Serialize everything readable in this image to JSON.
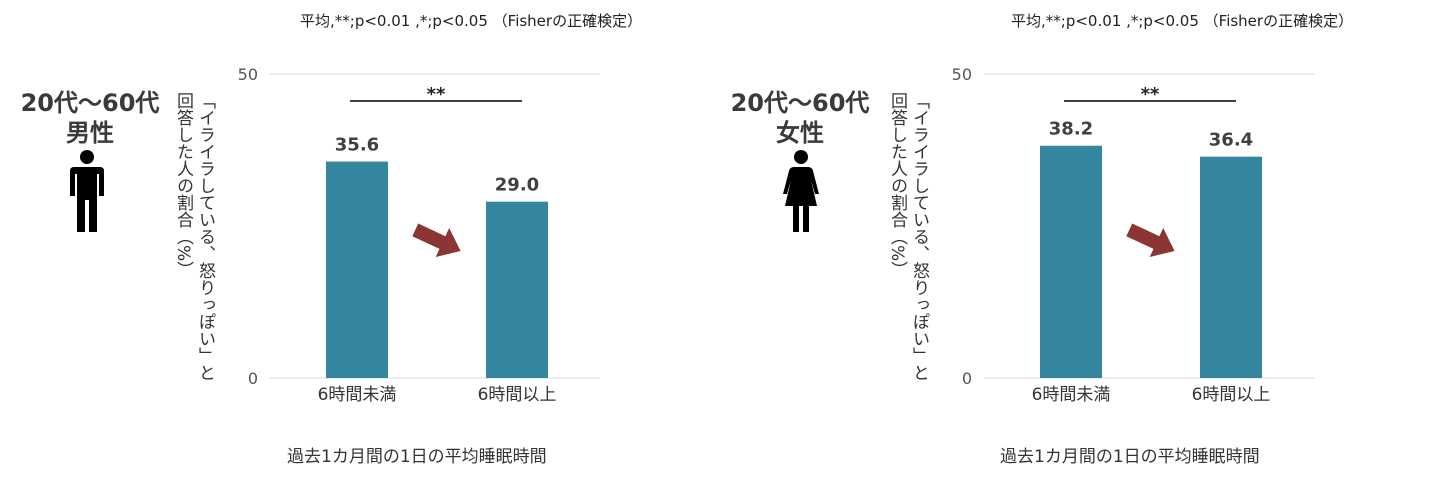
{
  "panels": [
    {
      "note": "平均,**;p<0.01 ,*;p<0.05 （Fisherの正確検定）",
      "group_line1": "20代～60代",
      "group_line2": "男性",
      "person_icon": "male-person-icon",
      "ylabel_line1": "「イライラしている、怒りっぽい」と",
      "ylabel_line2": "回答した人の割合（%）",
      "xlabel": "過去1カ月間の1日の平均睡眠時間",
      "significance": "**",
      "arrow_icon": "down-right-arrow-icon"
    },
    {
      "note": "平均,**;p<0.01 ,*;p<0.05 （Fisherの正確検定）",
      "group_line1": "20代～60代",
      "group_line2": "女性",
      "person_icon": "female-person-icon",
      "ylabel_line1": "「イライラしている、怒りっぽい」と",
      "ylabel_line2": "回答した人の割合（%）",
      "xlabel": "過去1カ月間の1日の平均睡眠時間",
      "significance": "**",
      "arrow_icon": "down-right-arrow-icon"
    }
  ],
  "colors": {
    "bar": "#33869e",
    "arrow": "#8b3535",
    "grid": "#d9d9d9"
  },
  "chart_data": [
    {
      "type": "bar",
      "title": "",
      "categories": [
        "6時間未満",
        "6時間以上"
      ],
      "values": [
        35.6,
        29.0
      ],
      "value_labels": [
        "35.6",
        "29.0"
      ],
      "ylim": [
        0,
        50
      ],
      "yticks": [
        "0",
        "50"
      ],
      "xlabel": "過去1カ月間の1日の平均睡眠時間",
      "ylabel": "「イライラしている、怒りっぽい」と回答した人の割合（%）",
      "grid": true
    },
    {
      "type": "bar",
      "title": "",
      "categories": [
        "6時間未満",
        "6時間以上"
      ],
      "values": [
        38.2,
        36.4
      ],
      "value_labels": [
        "38.2",
        "36.4"
      ],
      "ylim": [
        0,
        50
      ],
      "yticks": [
        "0",
        "50"
      ],
      "xlabel": "過去1カ月間の1日の平均睡眠時間",
      "ylabel": "「イライラしている、怒りっぽい」と回答した人の割合（%）",
      "grid": true
    }
  ]
}
